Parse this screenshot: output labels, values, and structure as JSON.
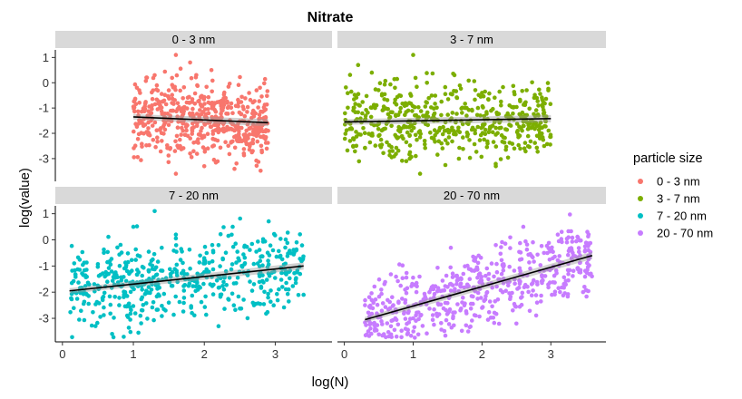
{
  "chart_data": {
    "type": "scatter",
    "title": "Nitrate",
    "xlabel": "log(N)",
    "ylabel": "log(value)",
    "xlim": [
      -0.1,
      3.8
    ],
    "ylim": [
      -3.9,
      1.3
    ],
    "x_ticks": [
      0,
      1,
      2,
      3
    ],
    "y_ticks": [
      -3,
      -2,
      -1,
      0,
      1
    ],
    "grid": false,
    "legend_title": "particle size",
    "legend_position": "right",
    "colors": {
      "0 - 3 nm": "#F8766D",
      "3 - 7 nm": "#7CAE00",
      "7 - 20 nm": "#00BFC4",
      "20 - 70 nm": "#C77CFF"
    },
    "panels": [
      {
        "label": "0 - 3 nm",
        "color": "#F8766D",
        "trend": {
          "x": [
            1.0,
            2.9
          ],
          "y": [
            -1.35,
            -1.58
          ]
        },
        "points": [
          [
            1.3,
            0.3
          ],
          [
            1.6,
            1.1
          ],
          [
            1.8,
            0.8
          ],
          [
            1.5,
            -0.3
          ],
          [
            1.9,
            -0.1
          ],
          [
            2.1,
            0.5
          ],
          [
            1.7,
            -1.0
          ],
          [
            1.2,
            -1.3
          ],
          [
            2.2,
            -1.8
          ],
          [
            2.4,
            -1.2
          ],
          [
            2.8,
            -1.6
          ],
          [
            1.4,
            -2.3
          ],
          [
            1.8,
            -2.8
          ],
          [
            2.0,
            -3.3
          ],
          [
            1.6,
            -3.6
          ],
          [
            2.5,
            -2.2
          ],
          [
            2.9,
            -1.9
          ],
          [
            1.1,
            -1.5
          ],
          [
            2.3,
            -0.6
          ],
          [
            1.9,
            -1.6
          ]
        ]
      },
      {
        "label": "3 - 7 nm",
        "color": "#7CAE00",
        "trend": {
          "x": [
            0.0,
            3.0
          ],
          "y": [
            -1.55,
            -1.42
          ]
        },
        "points": [
          [
            0.2,
            0.7
          ],
          [
            0.4,
            0.4
          ],
          [
            0.8,
            -0.5
          ],
          [
            1.0,
            1.1
          ],
          [
            1.2,
            0.0
          ],
          [
            1.6,
            0.3
          ],
          [
            2.0,
            -0.4
          ],
          [
            2.4,
            -0.9
          ],
          [
            2.9,
            -1.3
          ],
          [
            0.1,
            -1.8
          ],
          [
            0.5,
            -2.1
          ],
          [
            0.9,
            -3.1
          ],
          [
            1.1,
            -3.6
          ],
          [
            1.5,
            -2.4
          ],
          [
            1.9,
            -2.0
          ],
          [
            2.6,
            -1.7
          ],
          [
            0.7,
            -2.7
          ],
          [
            1.3,
            -1.5
          ],
          [
            2.2,
            -3.3
          ],
          [
            2.8,
            -2.1
          ]
        ]
      },
      {
        "label": "7 - 20 nm",
        "color": "#00BFC4",
        "trend": {
          "x": [
            0.1,
            3.4
          ],
          "y": [
            -1.95,
            -1.0
          ]
        },
        "points": [
          [
            0.3,
            -2.0
          ],
          [
            0.6,
            -1.4
          ],
          [
            0.8,
            -2.5
          ],
          [
            1.0,
            0.5
          ],
          [
            1.3,
            1.1
          ],
          [
            1.4,
            -0.3
          ],
          [
            1.6,
            0.2
          ],
          [
            1.8,
            -1.1
          ],
          [
            2.0,
            -0.7
          ],
          [
            2.2,
            -0.2
          ],
          [
            2.4,
            0.5
          ],
          [
            2.6,
            -1.3
          ],
          [
            2.9,
            -0.8
          ],
          [
            3.1,
            -1.8
          ],
          [
            3.4,
            -2.1
          ],
          [
            0.7,
            -3.6
          ],
          [
            1.1,
            -2.9
          ],
          [
            1.5,
            -2.4
          ],
          [
            2.2,
            -3.3
          ],
          [
            2.7,
            -2.5
          ]
        ]
      },
      {
        "label": "20 - 70 nm",
        "color": "#C77CFF",
        "trend": {
          "x": [
            0.3,
            3.6
          ],
          "y": [
            -3.05,
            -0.6
          ]
        },
        "points": [
          [
            0.3,
            -2.5
          ],
          [
            1.0,
            -3.0
          ],
          [
            1.3,
            -2.2
          ],
          [
            1.5,
            -1.8
          ],
          [
            1.7,
            -1.5
          ],
          [
            1.9,
            -0.8
          ],
          [
            2.0,
            -2.6
          ],
          [
            2.1,
            -1.3
          ],
          [
            2.2,
            -0.2
          ],
          [
            2.3,
            -2.0
          ],
          [
            2.4,
            -1.6
          ],
          [
            2.6,
            0.5
          ],
          [
            2.7,
            -1.1
          ],
          [
            2.9,
            -0.5
          ],
          [
            3.1,
            0.2
          ],
          [
            3.3,
            -0.7
          ],
          [
            3.5,
            -0.4
          ],
          [
            2.5,
            -3.2
          ],
          [
            1.8,
            -3.5
          ],
          [
            2.8,
            -2.4
          ]
        ]
      }
    ]
  }
}
